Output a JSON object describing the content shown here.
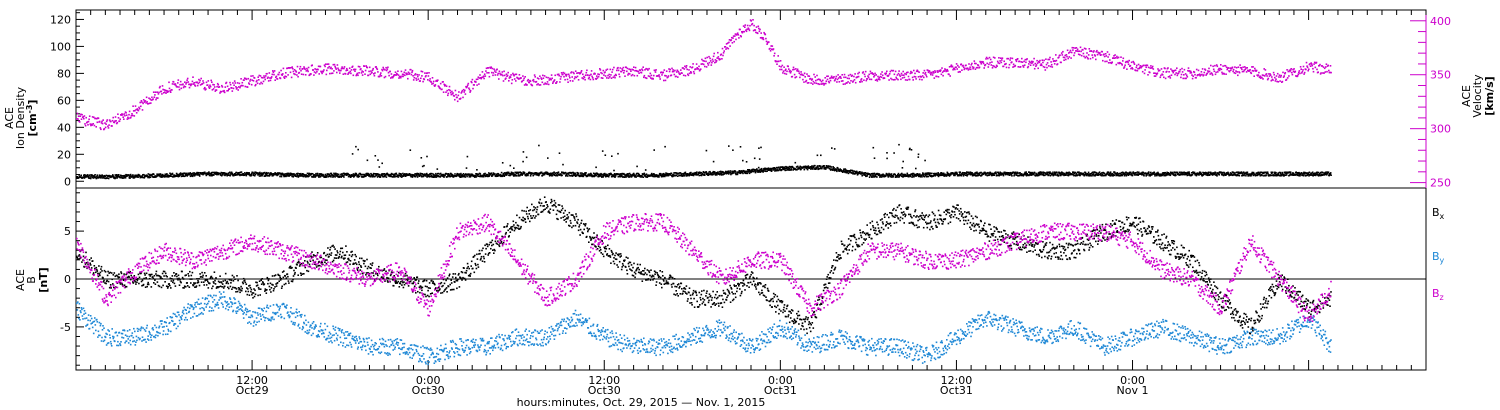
{
  "chart_data": [
    {
      "type": "scatter",
      "panel": "top",
      "ylabel_lines": [
        "ACE",
        "Ion Density",
        "[cm",
        "-3",
        "]"
      ],
      "y2label_lines": [
        "ACE",
        "Velocity",
        "[km/s]"
      ],
      "y_ticks": [
        "0",
        "20",
        "40",
        "60",
        "80",
        "100",
        "120"
      ],
      "y_range": [
        -5,
        127
      ],
      "y2_ticks": [
        "250",
        "300",
        "350",
        "400"
      ],
      "y2_range": [
        245,
        410
      ],
      "colors": {
        "density": "#000000",
        "velocity": "#cc00cc"
      },
      "series": [
        {
          "key": "density",
          "axis": "left",
          "x_hours": [
            0,
            3,
            6,
            9,
            12,
            15,
            18,
            21,
            24,
            27,
            30,
            33,
            36,
            39,
            42,
            45,
            48,
            51,
            54,
            57,
            60,
            63,
            66,
            69,
            72,
            75,
            78,
            81,
            84,
            85.5
          ],
          "values": [
            4,
            4,
            5,
            6,
            6,
            5,
            5,
            5,
            5,
            5,
            6,
            6,
            5,
            5,
            6,
            7,
            10,
            11,
            5,
            5,
            6,
            6,
            6,
            6,
            6,
            6,
            6,
            6,
            6,
            6
          ]
        },
        {
          "key": "velocity",
          "axis": "right",
          "x_hours": [
            0,
            2,
            4,
            6,
            8,
            10,
            12,
            14,
            16,
            18,
            20,
            22,
            24,
            26,
            28,
            30,
            32,
            34,
            36,
            38,
            40,
            42,
            44,
            45,
            46,
            47,
            48,
            50,
            52,
            54,
            56,
            58,
            60,
            62,
            64,
            66,
            68,
            70,
            72,
            74,
            76,
            78,
            80,
            82,
            84,
            85.5
          ],
          "values": [
            310,
            304,
            318,
            338,
            344,
            338,
            345,
            352,
            355,
            356,
            354,
            352,
            348,
            330,
            354,
            346,
            345,
            350,
            352,
            354,
            350,
            356,
            370,
            388,
            398,
            384,
            358,
            346,
            346,
            350,
            350,
            350,
            356,
            362,
            362,
            360,
            372,
            368,
            358,
            352,
            352,
            356,
            354,
            348,
            358,
            355
          ]
        }
      ]
    },
    {
      "type": "scatter",
      "panel": "bottom",
      "ylabel_lines": [
        "ACE",
        "B",
        "[nT]"
      ],
      "y_ticks": [
        "-5",
        "0",
        "5"
      ],
      "y_range": [
        -9.5,
        9.5
      ],
      "zero_line": 0,
      "x_ticks": [
        {
          "time": "12:00",
          "date": "Oct29"
        },
        {
          "time": "0:00",
          "date": "Oct30"
        },
        {
          "time": "12:00",
          "date": "Oct30"
        },
        {
          "time": "0:00",
          "date": "Oct31"
        },
        {
          "time": "12:00",
          "date": "Oct31"
        },
        {
          "time": "0:00",
          "date": "Nov 1"
        }
      ],
      "x_range_hours": [
        0,
        92
      ],
      "xlabel": "hours:minutes, Oct. 29, 2015 — Nov. 1, 2015",
      "legend": [
        {
          "key": "bx",
          "main": "B",
          "sub": "x",
          "color": "#000000"
        },
        {
          "key": "by",
          "main": "B",
          "sub": "y",
          "color": "#1f88d6"
        },
        {
          "key": "bz",
          "main": "B",
          "sub": "z",
          "color": "#cc00cc"
        }
      ],
      "series": [
        {
          "key": "bx",
          "x_hours": [
            0,
            2,
            4,
            6,
            8,
            10,
            12,
            14,
            16,
            18,
            20,
            22,
            24,
            26,
            28,
            30,
            32,
            34,
            36,
            38,
            40,
            42,
            44,
            46,
            48,
            50,
            52,
            54,
            56,
            58,
            60,
            62,
            64,
            66,
            68,
            70,
            72,
            74,
            76,
            78,
            80,
            82,
            84,
            85.5
          ],
          "values": [
            3,
            0,
            0,
            0,
            0,
            0,
            -1,
            0,
            2,
            3,
            1,
            0,
            -1,
            0,
            3,
            6,
            8,
            6,
            3,
            1,
            0,
            -2,
            -2,
            0,
            -3,
            -5,
            3,
            5,
            7,
            6,
            7,
            5,
            4,
            3,
            3,
            5,
            6,
            4,
            2,
            -2,
            -5,
            0,
            -3,
            -2
          ]
        },
        {
          "key": "by",
          "x_hours": [
            0,
            2,
            4,
            6,
            8,
            10,
            12,
            14,
            16,
            18,
            20,
            22,
            24,
            26,
            28,
            30,
            32,
            34,
            36,
            38,
            40,
            42,
            44,
            46,
            48,
            50,
            52,
            54,
            56,
            58,
            60,
            62,
            64,
            66,
            68,
            70,
            72,
            74,
            76,
            78,
            80,
            82,
            84,
            85.5
          ],
          "values": [
            -3,
            -6,
            -6,
            -5,
            -3,
            -2,
            -4,
            -3,
            -5,
            -6,
            -7,
            -7,
            -8,
            -7,
            -7,
            -6,
            -6,
            -4,
            -6,
            -7,
            -7,
            -6,
            -5,
            -7,
            -5,
            -7,
            -6,
            -7,
            -7,
            -8,
            -6,
            -4,
            -5,
            -6,
            -5,
            -7,
            -6,
            -5,
            -6,
            -7,
            -6,
            -6,
            -4,
            -7
          ]
        },
        {
          "key": "bz",
          "x_hours": [
            0,
            2,
            4,
            6,
            8,
            10,
            12,
            14,
            16,
            18,
            20,
            22,
            24,
            26,
            28,
            30,
            32,
            34,
            36,
            38,
            40,
            42,
            44,
            46,
            48,
            50,
            52,
            54,
            56,
            58,
            60,
            62,
            64,
            66,
            68,
            70,
            72,
            74,
            76,
            78,
            80,
            82,
            84,
            85.5
          ],
          "values": [
            4,
            -2,
            1,
            3,
            2,
            3,
            4,
            3,
            2,
            1,
            0,
            1,
            -3,
            5,
            6,
            2,
            -2,
            0,
            5,
            6,
            6,
            3,
            0,
            2,
            2,
            -3,
            -1,
            3,
            3,
            2,
            2,
            3,
            4,
            5,
            5,
            5,
            4,
            1,
            0,
            -3,
            4,
            0,
            -4,
            -1
          ]
        }
      ]
    }
  ]
}
